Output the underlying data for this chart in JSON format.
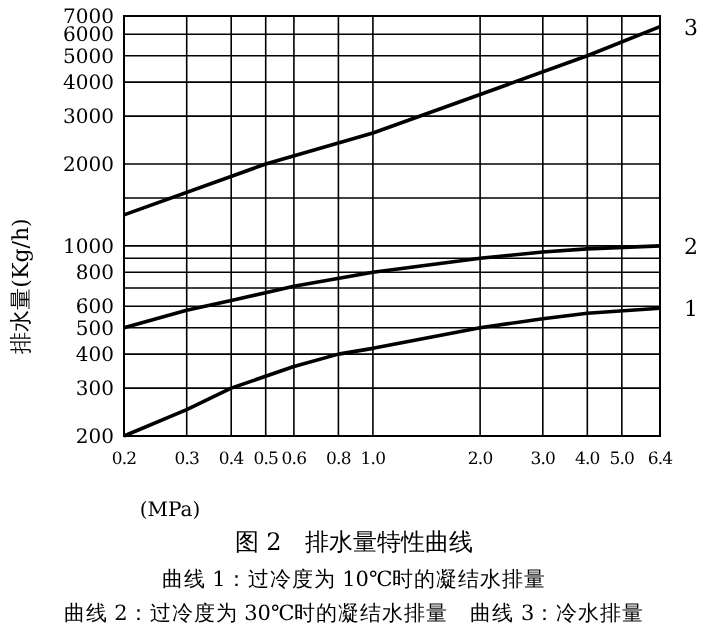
{
  "chart_data": {
    "type": "line",
    "title": "图 2　排水量特性曲线",
    "xlabel": "(MPa)",
    "ylabel": "排水量(Kg/h)",
    "annotations": [
      "曲线 1：过冷度为 10℃时的凝结水排量",
      "曲线 2：过冷度为 30℃时的凝结水排量　曲线 3：冷水排量"
    ],
    "log": "xy",
    "grid": true,
    "marker": "none",
    "line_style": "solid",
    "xlim": [
      0.2,
      6.4
    ],
    "ylim": [
      200,
      7000
    ],
    "xticks": [
      0.2,
      0.3,
      0.4,
      0.5,
      0.6,
      0.8,
      {
        "value": 1,
        "label": "1.0"
      },
      {
        "value": 2,
        "label": "2.0"
      },
      {
        "value": 3,
        "label": "3.0"
      },
      {
        "value": 4,
        "label": "4.0"
      },
      {
        "value": 5,
        "label": "5.0"
      },
      6.4
    ],
    "yticks": [
      200,
      300,
      400,
      500,
      600,
      {
        "value": 700,
        "label": null
      },
      800,
      {
        "value": 900,
        "label": null
      },
      1000,
      {
        "value": 1500,
        "label": null
      },
      2000,
      3000,
      4000,
      5000,
      6000,
      7000
    ],
    "series": [
      {
        "name": "1",
        "color": "#000000",
        "x": [
          0.2,
          0.3,
          0.4,
          0.6,
          0.8,
          1.0,
          2.0,
          3.0,
          4.0,
          6.4
        ],
        "values": [
          200,
          250,
          300,
          360,
          400,
          420,
          500,
          540,
          565,
          590
        ]
      },
      {
        "name": "2",
        "color": "#000000",
        "x": [
          0.2,
          0.3,
          0.4,
          0.6,
          1.0,
          2.0,
          3.0,
          4.0,
          6.4
        ],
        "values": [
          500,
          580,
          630,
          710,
          800,
          900,
          950,
          975,
          1000
        ]
      },
      {
        "name": "3",
        "color": "#000000",
        "x": [
          0.2,
          0.5,
          1.0,
          2.0,
          4.0,
          6.4
        ],
        "values": [
          1300,
          2000,
          2600,
          3600,
          5000,
          6400
        ]
      }
    ]
  }
}
